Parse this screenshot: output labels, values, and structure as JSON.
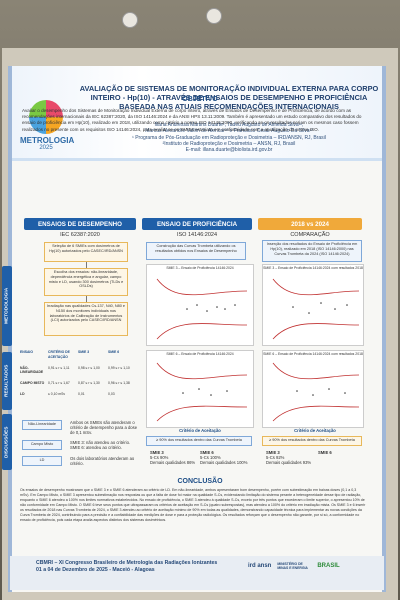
{
  "header": {
    "title": "AVALIAÇÃO DE SISTEMAS DE MONITORAÇÃO INDIVIDUAL EXTERNA PARA CORPO INTEIRO - Hp(10) - ATRAVÉS DE ENSAIOS DE DESEMPENHO E PROFICIÊNCIA BASEADA NAS ATUAIS RECOMENDAÇÕES INTERNACIONAIS",
    "authors": "Illana Andressa Martins Duarte¹, Tadeu Augusto de Almeida Silva¹²,",
    "authors2": "Marcus Alexandre Vallim de Alencar¹² e Francisco Cesar Augusto Da Silva¹²",
    "affil1": "¹ Programa de Pós-Graduação em Radioproteção e Dosimetria – IRD/ANSN, RJ, Brasil",
    "affil2": "²Instituto de Radioproteção e Dosimetria – ANSN, RJ, Brasil",
    "email": "E-mail: illana.duarte@biolista.ird.gov.br",
    "logo_text": "METROLOGIA",
    "logo_year": "2025"
  },
  "objetivo": {
    "heading": "OBJETIVO",
    "text": "Avaliar o desempenho dos Sistemas de Monitoração Individual Externa de corpo inteiro, através de Ensaios de Desempenho e de Proficiência, de acordo com as recomendações internacionais da IEC 62387:2020, da ISO 14146:2024 e da ANSI HPS 13.11:2009. Também é apresentado um estudo comparativo dos resultados do ensaio de proficiência em Hp(10), realizado em 2018, utilizando como critério a norma ISO 14146:2000, verificando se os resultados seriam os mesmos caso fossem realizados no presente com os requisitos ISO 14146:2024, para avaliar se os SMIEs estariam em conformidade com a atualização da norma ISO."
  },
  "sections": {
    "desempenho": {
      "label": "ENSAIOS DE DESEMPENHO",
      "sub": "IEC 62387:2020"
    },
    "proficiencia": {
      "label": "ENSAIO DE PROFICIÊNCIA",
      "sub": "ISO 14146:2024"
    },
    "comparacao": {
      "label": "2018 vs 2024",
      "sub": "COMPARAÇÃO"
    }
  },
  "side_labels": {
    "metodologia": "METODOLOGIA",
    "resultados": "RESULTADOS",
    "discussoes": "DISCUSSÕES"
  },
  "method_boxes": {
    "b1": "Seleção de 6 SMIEs com dosímetros de Hp(10) autorizados pelo CASEC/IRD/ANSN",
    "b2": "Escolha dos ensaios: não-linearidade, dependência energética e angular, campo misto e LD, usando 300 dosímetros (TLDs e OSLDs)",
    "b3": "Irradiação nas qualidades Cs-137, N40, N80 e N150 dos monitores individuais nos laboratórios de Calibração de Instrumentos (LCI) autorizados pelo CASEC/IRD/ANSN",
    "prof": "Construção das Curvas Trombeta utilizando os resultados obtidos nos Ensaios de Desempenho",
    "comp": "Inserção dos resultados do Ensaio de Proficiência em Hp(10), realizado em 2018 (ISO 14146:2000) nas Curvas Trombeta da 2024 (ISO 14146:2024)"
  },
  "results_table": {
    "col1": "ENSAIO",
    "col2": "CRITÉRIO DE ACEITAÇÃO",
    "col3": "SMIE 3",
    "col4": "SMIE 6",
    "rows": [
      {
        "name": "NÃO-LINEARIDADE",
        "crit": "0,91 ≤ r ≤ 1,11",
        "s3": "0,98 ≤ r ≤ 1,00",
        "s6": "0,99 ≤ r ≤ 1,10"
      },
      {
        "name": "CAMPO MISTO",
        "crit": "0,71 ≤ r ≤ 1,67",
        "s3": "0,87 ≤ r ≤ 1,30",
        "s6": "0,96 ≤ r ≤ 1,38"
      },
      {
        "name": "LD",
        "crit": "≤ 0,10 mSv",
        "s3": "0,01",
        "s6": "0,03"
      }
    ]
  },
  "charts": {
    "c1": "SMIE 3 – Ensaio de Proficiência 14146:2024",
    "c2": "SMIE 3 – Ensaio de Proficiência 14146:2024 com resultados 2018",
    "c3": "SMIE 6 – Ensaio de Proficiência 14146:2024",
    "c4": "SMIE 6 – Ensaio de Proficiência 14146:2024 com resultados 2018"
  },
  "criteria": {
    "prof_label": "Critério de Aceitação",
    "prof_text": "≥ 90% dos resultados dentro das Curvas Trombeta",
    "comp_label": "Critério de Aceitação",
    "comp_text": "≥ 90% dos resultados dentro das Curvas Trombeta"
  },
  "prof_results": {
    "s3_name": "SMIE 3",
    "s3_a": "5-Cs 90%",
    "s3_b": "Demais qualidades 86%",
    "s6_name": "SMIE 6",
    "s6_a": "5-Cs 100%",
    "s6_b": "Demais qualidades 100%"
  },
  "comp_results": {
    "s3_name": "SMIE 3",
    "s3_a": "5-Cs 92%",
    "s3_b": "Demais qualidades 93%",
    "s6_name": "SMIE 6"
  },
  "discussoes": {
    "c1": "Não-Linearidade",
    "c2": "Campo Misto",
    "c3": "LD",
    "t1": "Ambos os SMIEs são atenderam o critério de desempenho para a dose de 0,1 mSv.",
    "t2": "SMIE 3: não atendeu ao critério. SMIE 6: atendeu ao critério.",
    "t3": "Os dois laboratórios atenderam ao critério."
  },
  "conclusao": {
    "heading": "CONCLUSÃO",
    "text": "Os ensaios de desempenho mostraram que o SMIE 3 e o SMIE 6 atenderam ao critério de LD. Em não-linearidade, ambos apresentaram bom desempenho, porém com subestimação em baixas doses (0,1 a 0,3 mSv). Em Campo Misto, o SMIE 3 apresentou subestimação nos respostas ou que a falta de dose foi maior na qualidade S-Cs, evidenciando limitação do sistema perante a heterogeneidade desse tipo de radiação, enquanto o SMIE 6 atendeu a 100% nos limites normativos estabelecidos. No ensaio de proficiência, o SMIE 3 atendeu à qualidade S-Cs, exceto por três pontos que excederam o limite superior, o apresentou 10% de não conformidade em Campo Misto. O SMIE 6 teve seus pontos que ultrapassaram os critérios de aceitação em S-Cs (quatro subrespostas), mas atendeu a 100% do critério em irradiação mista. Os SMIE 3 e 6 inserir os resultados de 2018 nas Curvas Trombeta de 2024, o SMIE 3 atendeu ao critério de aceitação mínimo de 90% em todas as qualidades, demonstrando capacidade técnica para implementar as novas condições da Curva Trombeta de 2024, contribuindo para a precisão e a confiabilidade das medições de dose e para a proteção radiológica. Os resultados reforçam que o desempenho não garante, por si só, a conformidade no ensaio de proficiência, pois cada etapa avalia aspectos distintos dos sistemas dosimétricos."
  },
  "footer": {
    "line1": "CBMRI – XI Congresso Brasileiro de Metrologia das Radiações Ionizantes",
    "line2": "01 a 04 de Dezembro de 2025 - Maceió - Alagoas",
    "logo1": "ird ansn",
    "logo2": "MINISTÉRIO DE MINAS E ENERGIA",
    "logo3": "BRASIL"
  },
  "colors": {
    "primary": "#1f5fa8",
    "accent": "#f0a93a",
    "title": "#20406e"
  }
}
